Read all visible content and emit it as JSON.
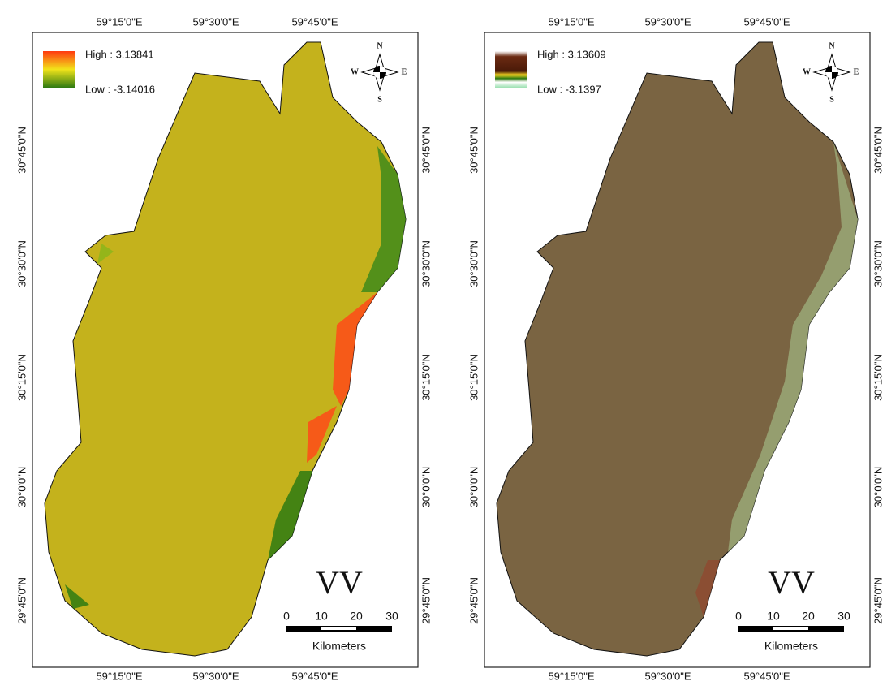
{
  "panels": [
    {
      "top_labels": [
        "59°15'0\"E",
        "59°30'0\"E",
        "59°45'0\"E"
      ],
      "bottom_labels": [
        "59°15'0\"E",
        "59°30'0\"E",
        "59°45'0\"E"
      ],
      "left_labels": [
        "30°45'0\"N",
        "30°30'0\"N",
        "30°15'0\"N",
        "30°0'0\"N",
        "29°45'0\"N"
      ],
      "right_labels": [
        "30°45'0\"N",
        "30°30'0\"N",
        "30°15'0\"N",
        "30°0'0\"N",
        "29°45'0\"N"
      ],
      "legend": {
        "high": "High : 3.13841",
        "low": "Low : -3.14016"
      },
      "compass": {
        "n": "N",
        "e": "E",
        "s": "S",
        "w": "W"
      },
      "label": "VV",
      "scale": {
        "ticks": [
          "0",
          "10",
          "20",
          "30"
        ],
        "unit": "Kilometers"
      }
    },
    {
      "top_labels": [
        "59°15'0\"E",
        "59°30'0\"E",
        "59°45'0\"E"
      ],
      "bottom_labels": [
        "59°15'0\"E",
        "59°30'0\"E",
        "59°45'0\"E"
      ],
      "left_labels": [
        "30°45'0\"N",
        "30°30'0\"N",
        "30°15'0\"N",
        "30°0'0\"N",
        "29°45'0\"N"
      ],
      "right_labels": [
        "30°45'0\"N",
        "30°30'0\"N",
        "30°15'0\"N",
        "30°0'0\"N",
        "29°45'0\"N"
      ],
      "legend": {
        "high": "High : 3.13609",
        "low": "Low : -3.1397"
      },
      "compass": {
        "n": "N",
        "e": "E",
        "s": "S",
        "w": "W"
      },
      "label": "VV",
      "scale": {
        "ticks": [
          "0",
          "10",
          "20",
          "30"
        ],
        "unit": "Kilometers"
      }
    }
  ]
}
